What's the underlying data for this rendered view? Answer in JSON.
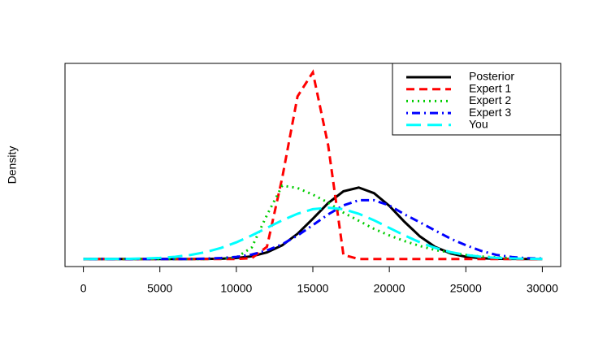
{
  "chart_data": {
    "type": "line",
    "y_label": "Density",
    "x": [
      0,
      1000,
      2000,
      3000,
      4000,
      5000,
      6000,
      7000,
      8000,
      9000,
      10000,
      11000,
      12000,
      13000,
      14000,
      15000,
      16000,
      17000,
      18000,
      19000,
      20000,
      21000,
      22000,
      23000,
      24000,
      25000,
      26000,
      27000,
      28000,
      29000,
      30000
    ],
    "xlim": [
      -1200,
      31200
    ],
    "xticks": [
      0,
      5000,
      10000,
      15000,
      20000,
      25000,
      30000
    ],
    "ylim": [
      -1.6e-05,
      0.000416
    ],
    "legend": "top-right",
    "series": [
      {
        "name": "Posterior",
        "color": "#000000",
        "linestyle": "solid",
        "values": [
          0,
          0,
          0,
          0,
          0,
          0,
          0,
          0,
          2e-07,
          7e-07,
          2.1e-06,
          5.7e-06,
          1.4e-05,
          2.93e-05,
          5.37e-05,
          8.56e-05,
          0.000119,
          0.000144,
          0.000152,
          0.00014,
          0.000113,
          7.88e-05,
          4.81e-05,
          2.56e-05,
          1.2e-05,
          4.8e-06,
          1.7e-06,
          5e-07,
          2e-07,
          0,
          0
        ]
      },
      {
        "name": "Expert 1",
        "color": "#ff0000",
        "linestyle": "dashed",
        "values": [
          0,
          0,
          0,
          0,
          0,
          0,
          0,
          0,
          0,
          0,
          0,
          1.7e-06,
          2.6e-05,
          0.000173,
          0.000346,
          0.000397,
          0.000242,
          8.7e-06,
          0,
          0,
          0,
          0,
          0,
          0,
          0,
          0,
          0,
          0,
          0,
          0,
          0
        ]
      },
      {
        "name": "Expert 2",
        "color": "#00cd00",
        "linestyle": "dotted",
        "values": [
          0,
          0,
          0,
          0,
          0,
          0,
          0,
          0,
          0,
          9e-07,
          3.5e-06,
          2.42e-05,
          9.35e-05,
          0.000156,
          0.000151,
          0.000137,
          0.00012,
          9.87e-05,
          8.14e-05,
          6.41e-05,
          5.02e-05,
          3.81e-05,
          2.77e-05,
          1.91e-05,
          1.39e-05,
          8.7e-06,
          5.2e-06,
          3.5e-06,
          1.7e-06,
          9e-07,
          5e-07
        ]
      },
      {
        "name": "Expert 3",
        "color": "#0000ff",
        "linestyle": "dotdash",
        "values": [
          0,
          0,
          0,
          0,
          0,
          0,
          0,
          0,
          9e-07,
          2.1e-06,
          4.5e-06,
          9.5e-06,
          1.82e-05,
          3.15e-05,
          4.99e-05,
          7.21e-05,
          9.49e-05,
          0.000114,
          0.000125,
          0.000125,
          0.000114,
          9.49e-05,
          7.79e-05,
          6.06e-05,
          4.33e-05,
          2.94e-05,
          1.73e-05,
          8.7e-06,
          4.3e-06,
          1.7e-06,
          9e-07
        ]
      },
      {
        "name": "You",
        "color": "#00ffff",
        "linestyle": "longdash",
        "values": [
          0,
          1e-07,
          2e-07,
          5e-07,
          1.2e-06,
          2.4e-06,
          4.8e-06,
          8.7e-06,
          1.47e-05,
          2.36e-05,
          3.55e-05,
          5.01e-05,
          6.62e-05,
          8.24e-05,
          9.63e-05,
          0.000106,
          0.000109,
          0.000106,
          9.63e-05,
          8.24e-05,
          6.62e-05,
          5.01e-05,
          3.55e-05,
          2.36e-05,
          1.47e-05,
          8.7e-06,
          4.8e-06,
          2.4e-06,
          1.2e-06,
          5e-07,
          2e-07
        ]
      }
    ]
  }
}
